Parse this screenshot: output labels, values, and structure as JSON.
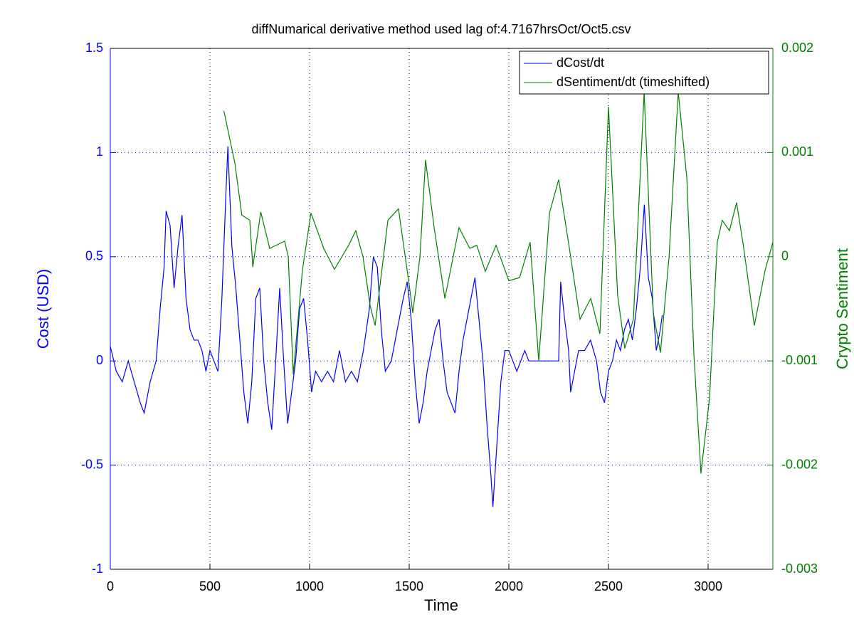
{
  "chart_data": {
    "type": "line",
    "title": "diffNumarical derivative method used lag of:4.7167hrsOct/Oct5.csv",
    "xlabel": "Time",
    "ylabel": "Cost (USD)",
    "y2label": "Crypto Sentiment",
    "xlim": [
      0,
      3325
    ],
    "xticks": [
      0,
      500,
      1000,
      1500,
      2000,
      2500,
      3000
    ],
    "ylim": [
      -1,
      1.5
    ],
    "yticks": [
      -1,
      -0.5,
      0,
      0.5,
      1,
      1.5
    ],
    "y2lim": [
      -0.003,
      0.002
    ],
    "y2ticks": [
      -0.003,
      -0.002,
      -0.001,
      0,
      0.001,
      0.002
    ],
    "grid": true,
    "legend": "top-right",
    "series": [
      {
        "name": "dCost/dt",
        "color": "#0000ff",
        "axis": "y",
        "x": [
          0,
          30,
          60,
          90,
          120,
          150,
          170,
          200,
          230,
          250,
          270,
          280,
          300,
          320,
          340,
          360,
          380,
          400,
          420,
          440,
          460,
          480,
          500,
          520,
          540,
          560,
          580,
          590,
          610,
          630,
          650,
          670,
          690,
          710,
          730,
          750,
          770,
          790,
          810,
          830,
          850,
          870,
          890,
          910,
          930,
          950,
          970,
          990,
          1010,
          1030,
          1060,
          1090,
          1120,
          1150,
          1180,
          1210,
          1240,
          1270,
          1300,
          1320,
          1340,
          1360,
          1380,
          1410,
          1440,
          1470,
          1490,
          1510,
          1530,
          1550,
          1570,
          1590,
          1610,
          1630,
          1650,
          1670,
          1690,
          1710,
          1730,
          1750,
          1770,
          1790,
          1810,
          1830,
          1850,
          1870,
          1890,
          1910,
          1920,
          1940,
          1960,
          1980,
          2000,
          2020,
          2040,
          2060,
          2080,
          2100,
          2150,
          2200,
          2250,
          2260,
          2280,
          2300,
          2310,
          2330,
          2350,
          2380,
          2410,
          2440,
          2460,
          2480,
          2500,
          2520,
          2540,
          2560,
          2580,
          2600,
          2620,
          2640,
          2660,
          2680,
          2700,
          2720,
          2740,
          2760,
          2770
        ],
        "values": [
          0.07,
          -0.05,
          -0.1,
          0.0,
          -0.1,
          -0.2,
          -0.25,
          -0.1,
          0.0,
          0.25,
          0.45,
          0.72,
          0.65,
          0.35,
          0.55,
          0.7,
          0.3,
          0.15,
          0.1,
          0.1,
          0.05,
          -0.05,
          0.05,
          0.0,
          -0.05,
          0.3,
          0.8,
          1.03,
          0.55,
          0.35,
          0.1,
          -0.15,
          -0.3,
          -0.1,
          0.3,
          0.35,
          0.0,
          -0.2,
          -0.33,
          0.0,
          0.35,
          0.0,
          -0.3,
          -0.15,
          0.0,
          0.25,
          0.3,
          0.1,
          -0.15,
          -0.05,
          -0.1,
          -0.05,
          -0.1,
          0.05,
          -0.1,
          -0.05,
          -0.1,
          0.05,
          0.25,
          0.5,
          0.45,
          0.15,
          -0.05,
          0.0,
          0.15,
          0.3,
          0.38,
          0.2,
          -0.1,
          -0.3,
          -0.2,
          -0.05,
          0.05,
          0.15,
          0.2,
          0.0,
          -0.15,
          -0.2,
          -0.25,
          -0.05,
          0.1,
          0.2,
          0.3,
          0.4,
          0.2,
          0.0,
          -0.3,
          -0.55,
          -0.7,
          -0.4,
          -0.1,
          0.05,
          0.05,
          0.0,
          -0.05,
          0.0,
          0.05,
          0.0,
          0.0,
          0.0,
          0.0,
          0.38,
          0.2,
          0.05,
          -0.15,
          -0.05,
          0.05,
          0.05,
          0.1,
          0.0,
          -0.15,
          -0.2,
          -0.05,
          0.0,
          0.1,
          0.05,
          0.15,
          0.2,
          0.1,
          0.25,
          0.45,
          0.75,
          0.4,
          0.3,
          0.05,
          0.15,
          0.22
        ]
      },
      {
        "name": "dSentiment/dt (timeshifted)",
        "color": "#008000",
        "axis": "y2",
        "x": [
          570,
          625,
          660,
          700,
          715,
          755,
          800,
          875,
          893,
          918,
          964,
          1007,
          1071,
          1125,
          1196,
          1232,
          1268,
          1304,
          1329,
          1393,
          1446,
          1500,
          1518,
          1554,
          1582,
          1625,
          1679,
          1750,
          1804,
          1839,
          1882,
          1936,
          2000,
          2054,
          2107,
          2150,
          2204,
          2250,
          2304,
          2357,
          2411,
          2457,
          2500,
          2546,
          2582,
          2625,
          2679,
          2725,
          2761,
          2804,
          2850,
          2893,
          2929,
          2964,
          3007,
          3046,
          3071,
          3107,
          3143,
          3179,
          3232,
          3286,
          3325
        ],
        "values": [
          0.0014,
          0.0009,
          0.0004,
          0.00035,
          -0.0001,
          0.00043,
          8e-05,
          0.00015,
          0.0,
          -0.00113,
          -0.00013,
          0.00042,
          8e-05,
          -0.00012,
          0.00011,
          0.00025,
          0.0,
          -0.00047,
          -0.00066,
          0.00035,
          0.00046,
          -0.00027,
          -0.00054,
          0.0,
          0.00093,
          0.00028,
          -0.0004,
          0.00028,
          8e-05,
          0.00011,
          -0.00014,
          0.00011,
          -0.00023,
          -0.0002,
          0.00014,
          -0.001,
          0.00042,
          0.00074,
          8e-05,
          -0.0006,
          -0.0004,
          -0.00074,
          0.00144,
          -0.00037,
          -0.00088,
          -0.0006,
          0.00158,
          -0.00054,
          -0.00092,
          0.0,
          0.00158,
          0.00076,
          -0.00095,
          -0.00208,
          -0.00136,
          0.00014,
          0.00035,
          0.00025,
          0.00052,
          8e-05,
          -0.00066,
          -0.00013,
          0.00014
        ]
      }
    ]
  }
}
